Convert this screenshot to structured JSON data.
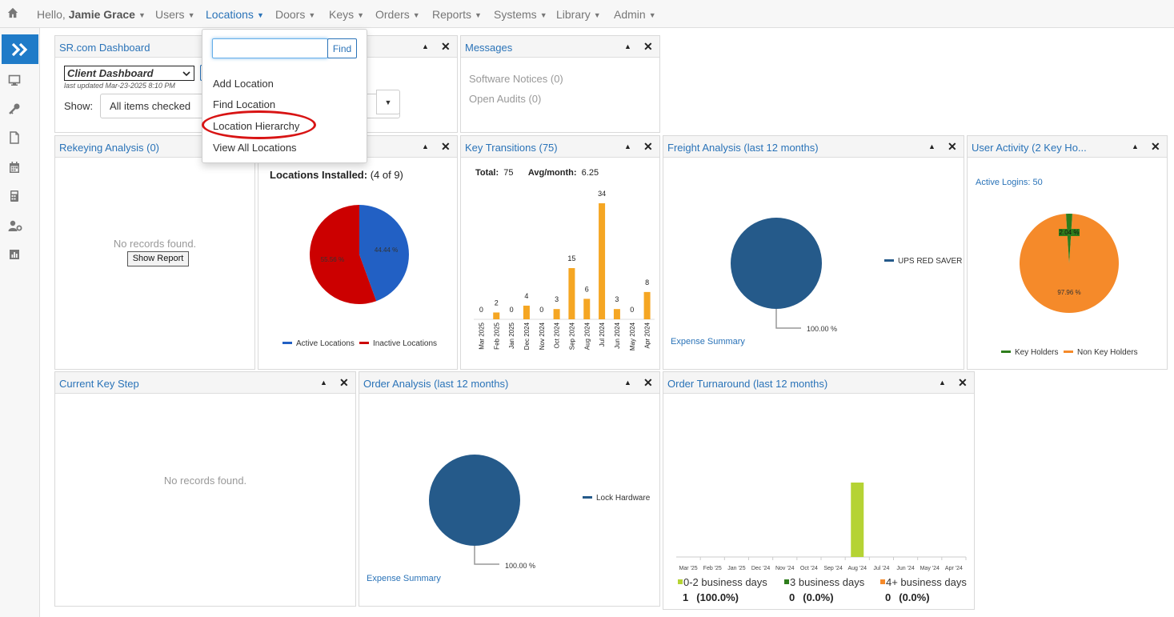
{
  "nav": {
    "greeting_prefix": "Hello,",
    "user_name": "Jamie Grace",
    "items": [
      {
        "label": "Users"
      },
      {
        "label": "Locations"
      },
      {
        "label": "Doors"
      },
      {
        "label": "Keys"
      },
      {
        "label": "Orders"
      },
      {
        "label": "Reports"
      },
      {
        "label": "Systems"
      },
      {
        "label": "Library"
      },
      {
        "label": "Admin"
      }
    ]
  },
  "sidebar": {
    "icons": [
      "monitor-icon",
      "key-icon",
      "document-icon",
      "calendar-icon",
      "calculator-icon",
      "user-settings-icon",
      "report-icon"
    ]
  },
  "locations_menu": {
    "search_value": "",
    "find_label": "Find",
    "items": [
      "Add Location",
      "Find Location",
      "Location Hierarchy",
      "View All Locations"
    ]
  },
  "dashboard": {
    "title": "SR.com Dashboard",
    "selected_dashboard": "Client Dashboard",
    "last_updated": "last updated Mar-23-2025 8:10 PM",
    "show_label": "Show:",
    "show_value": "All items checked"
  },
  "messages": {
    "title": "Messages",
    "items": [
      "Software Notices (0)",
      "Open Audits (0)"
    ]
  },
  "rekeying": {
    "title": "Rekeying Analysis (0)",
    "empty_text": "No records found.",
    "button_label": "Show Report"
  },
  "locations_widget": {
    "heading_bold": "Locations Installed:",
    "heading_rest": "(4 of 9)",
    "chart_data": {
      "type": "pie",
      "slices": [
        {
          "label": "Active Locations",
          "value": 44.44,
          "color": "#2260c4"
        },
        {
          "label": "Inactive Locations",
          "value": 55.56,
          "color": "#cc0000"
        }
      ]
    },
    "slice_labels": [
      "44.44 %",
      "55.56 %"
    ]
  },
  "key_transitions": {
    "title": "Key Transitions (75)",
    "total_label": "Total:",
    "total_value": "75",
    "avg_label": "Avg/month:",
    "avg_value": "6.25",
    "chart_data": {
      "type": "bar",
      "categories": [
        "Mar 2025",
        "Feb 2025",
        "Jan 2025",
        "Dec 2024",
        "Nov 2024",
        "Oct 2024",
        "Sep 2024",
        "Aug 2024",
        "Jul 2024",
        "Jun 2024",
        "May 2024",
        "Apr 2024"
      ],
      "values": [
        0,
        2,
        0,
        4,
        0,
        3,
        15,
        6,
        34,
        3,
        0,
        8
      ],
      "color": "#f5a623"
    }
  },
  "freight": {
    "title": "Freight Analysis (last 12 months)",
    "chart_data": {
      "type": "pie",
      "slices": [
        {
          "label": "UPS RED SAVER",
          "value": 100.0,
          "color": "#255a8a"
        }
      ]
    },
    "pct_label": "100.00 %",
    "link_label": "Expense Summary"
  },
  "user_activity": {
    "title": "User Activity (2 Key Ho...",
    "active_logins": "Active Logins: 50",
    "chart_data": {
      "type": "pie",
      "slices": [
        {
          "label": "Key Holders",
          "value": 2.04,
          "color": "#2e7d1c"
        },
        {
          "label": "Non Key Holders",
          "value": 97.96,
          "color": "#f58a2a"
        }
      ]
    },
    "slice_labels": [
      "2.04 %",
      "97.96 %"
    ]
  },
  "current_key_step": {
    "title": "Current Key Step",
    "empty_text": "No records found."
  },
  "order_analysis": {
    "title": "Order Analysis (last 12 months)",
    "chart_data": {
      "type": "pie",
      "slices": [
        {
          "label": "Lock Hardware",
          "value": 100.0,
          "color": "#255a8a"
        }
      ]
    },
    "pct_label": "100.00 %",
    "link_label": "Expense Summary"
  },
  "order_turnaround": {
    "title": "Order Turnaround (last 12 months)",
    "chart_data": {
      "type": "bar",
      "categories": [
        "Mar '25",
        "Feb '25",
        "Jan '25",
        "Dec '24",
        "Nov '24",
        "Oct '24",
        "Sep '24",
        "Aug '24",
        "Jul '24",
        "Jun '24",
        "May '24",
        "Apr '24"
      ],
      "values": [
        0,
        0,
        0,
        0,
        0,
        0,
        0,
        1,
        0,
        0,
        0,
        0
      ],
      "color": "#b5d334"
    },
    "legend": [
      {
        "label": "0-2 business days",
        "count": "1",
        "pct": "(100.0%)",
        "color": "#b5d334"
      },
      {
        "label": "3 business days",
        "count": "0",
        "pct": "(0.0%)",
        "color": "#2e7d1c"
      },
      {
        "label": "4+ business days",
        "count": "0",
        "pct": "(0.0%)",
        "color": "#f58a2a"
      }
    ]
  }
}
